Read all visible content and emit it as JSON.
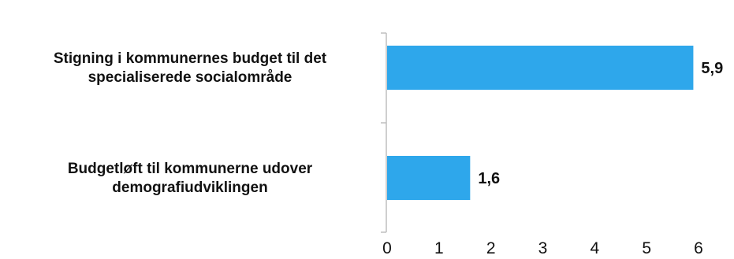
{
  "chart_data": {
    "type": "bar",
    "orientation": "horizontal",
    "categories": [
      [
        "Stigning i kommunernes budget til det",
        "specialiserede socialområde"
      ],
      [
        "Budgetløft til kommunerne udover",
        "demografiudviklingen"
      ]
    ],
    "values": [
      5.9,
      1.6
    ],
    "value_labels": [
      "5,9",
      "1,6"
    ],
    "xlim": [
      0,
      6
    ],
    "xticks": [
      "0",
      "1",
      "2",
      "3",
      "4",
      "5",
      "6"
    ],
    "bar_color": "#2ea7eb",
    "axis_color": "#bfbfbf",
    "grid": false,
    "legend": "none"
  }
}
